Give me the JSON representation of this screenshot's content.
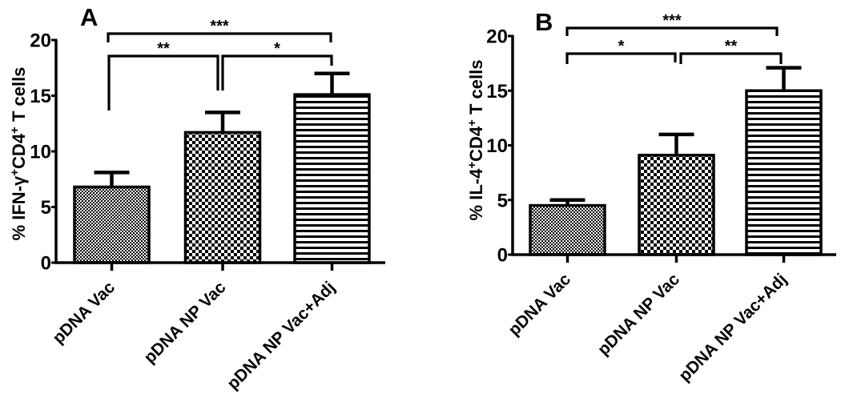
{
  "chart_data": [
    {
      "type": "bar",
      "panel_letter": "A",
      "title": "",
      "xlabel": "",
      "ylabel": "% IFN-γ+CD4+ T cells",
      "ylabel_segments": [
        {
          "text": "% IFN-"
        },
        {
          "text": "γ"
        },
        {
          "text": "+",
          "sup": true
        },
        {
          "text": "CD4"
        },
        {
          "text": "+",
          "sup": true
        },
        {
          "text": " T cells"
        }
      ],
      "categories": [
        "pDNA Vac",
        "pDNA NP Vac",
        "pDNA NP Vac+Adj"
      ],
      "values": [
        6.8,
        11.7,
        15.1
      ],
      "errors_upper": [
        1.3,
        1.8,
        1.9
      ],
      "ylim": [
        0,
        20
      ],
      "yticks": [
        "0",
        "5",
        "10",
        "15",
        "20"
      ],
      "grid": false,
      "legend": "none",
      "bar_fill_patterns": [
        "fine-checker",
        "coarse-checker",
        "horizontal-lines"
      ],
      "bar_color": "#000000",
      "significance": [
        {
          "pair": [
            0,
            2
          ],
          "label": "***"
        },
        {
          "pair": [
            0,
            1
          ],
          "label": "**"
        },
        {
          "pair": [
            1,
            2
          ],
          "label": "*"
        }
      ]
    },
    {
      "type": "bar",
      "panel_letter": "B",
      "title": "",
      "xlabel": "",
      "ylabel": "% IL-4+CD4+ T cells",
      "ylabel_segments": [
        {
          "text": "% IL-4"
        },
        {
          "text": "+",
          "sup": true
        },
        {
          "text": "CD4"
        },
        {
          "text": "+",
          "sup": true
        },
        {
          "text": " T cells"
        }
      ],
      "categories": [
        "pDNA Vac",
        "pDNA NP Vac",
        "pDNA NP Vac+Adj"
      ],
      "values": [
        4.5,
        9.1,
        15.0
      ],
      "errors_upper": [
        0.5,
        1.9,
        2.1
      ],
      "ylim": [
        0,
        20
      ],
      "yticks": [
        "0",
        "5",
        "10",
        "15",
        "20"
      ],
      "grid": false,
      "legend": "none",
      "bar_fill_patterns": [
        "fine-checker",
        "coarse-checker",
        "horizontal-lines"
      ],
      "bar_color": "#000000",
      "significance": [
        {
          "pair": [
            0,
            2
          ],
          "label": "***"
        },
        {
          "pair": [
            0,
            1
          ],
          "label": "*"
        },
        {
          "pair": [
            1,
            2
          ],
          "label": "**"
        }
      ]
    }
  ]
}
